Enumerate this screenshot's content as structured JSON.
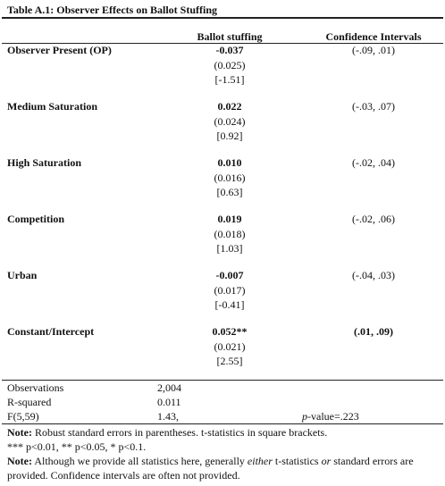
{
  "title": "Table A.1: Observer Effects on Ballot Stuffing",
  "header": [
    "Ballot stuffing",
    "Confidence Intervals"
  ],
  "rows": [
    {
      "label": "Observer Present (OP)",
      "coef": "-0.037",
      "se": "(0.025)",
      "t": "[-1.51]",
      "ci": "(-.09, .01)",
      "ci_bold": false
    },
    {
      "label": "Medium Saturation",
      "coef": "0.022",
      "se": "(0.024)",
      "t": "[0.92]",
      "ci": "(-.03, .07)",
      "ci_bold": false
    },
    {
      "label": "High Saturation",
      "coef": "0.010",
      "se": "(0.016)",
      "t": "[0.63]",
      "ci": "(-.02, .04)",
      "ci_bold": false
    },
    {
      "label": "Competition",
      "coef": "0.019",
      "se": "(0.018)",
      "t": "[1.03]",
      "ci": "(-.02, .06)",
      "ci_bold": false
    },
    {
      "label": "Urban",
      "coef": "-0.007",
      "se": "(0.017)",
      "t": "[-0.41]",
      "ci": "(-.04, .03)",
      "ci_bold": false
    },
    {
      "label": "Constant/Intercept",
      "coef": "0.052**",
      "se": "(0.021)",
      "t": "[2.55]",
      "ci": "(.01, .09)",
      "ci_bold": true
    }
  ],
  "stats": [
    {
      "label": "Observations",
      "value": "2,004"
    },
    {
      "label": "R-squared",
      "value": "0.011"
    },
    {
      "label": "F(5,59)",
      "value": "1.43,",
      "extra": [
        {
          "text": "p",
          "style": "italic"
        },
        {
          "text": "-value=.223",
          "style": "normal"
        }
      ]
    }
  ],
  "notes": [
    [
      {
        "text": "Note:",
        "style": "bold"
      },
      {
        "text": " Robust standard errors in parentheses. t-statistics in square brackets.",
        "style": "normal"
      }
    ],
    [
      {
        "text": "*** p<0.01, ** p<0.05, * p<0.1.",
        "style": "normal"
      }
    ],
    [
      {
        "text": "Note:",
        "style": "bold"
      },
      {
        "text": " Although we provide all statistics here, generally ",
        "style": "normal"
      },
      {
        "text": "either",
        "style": "italic"
      },
      {
        "text": " t-statistics ",
        "style": "normal"
      },
      {
        "text": "or",
        "style": "italic"
      },
      {
        "text": " standard errors are provided. Confidence intervals are often not provided.",
        "style": "normal"
      }
    ]
  ]
}
